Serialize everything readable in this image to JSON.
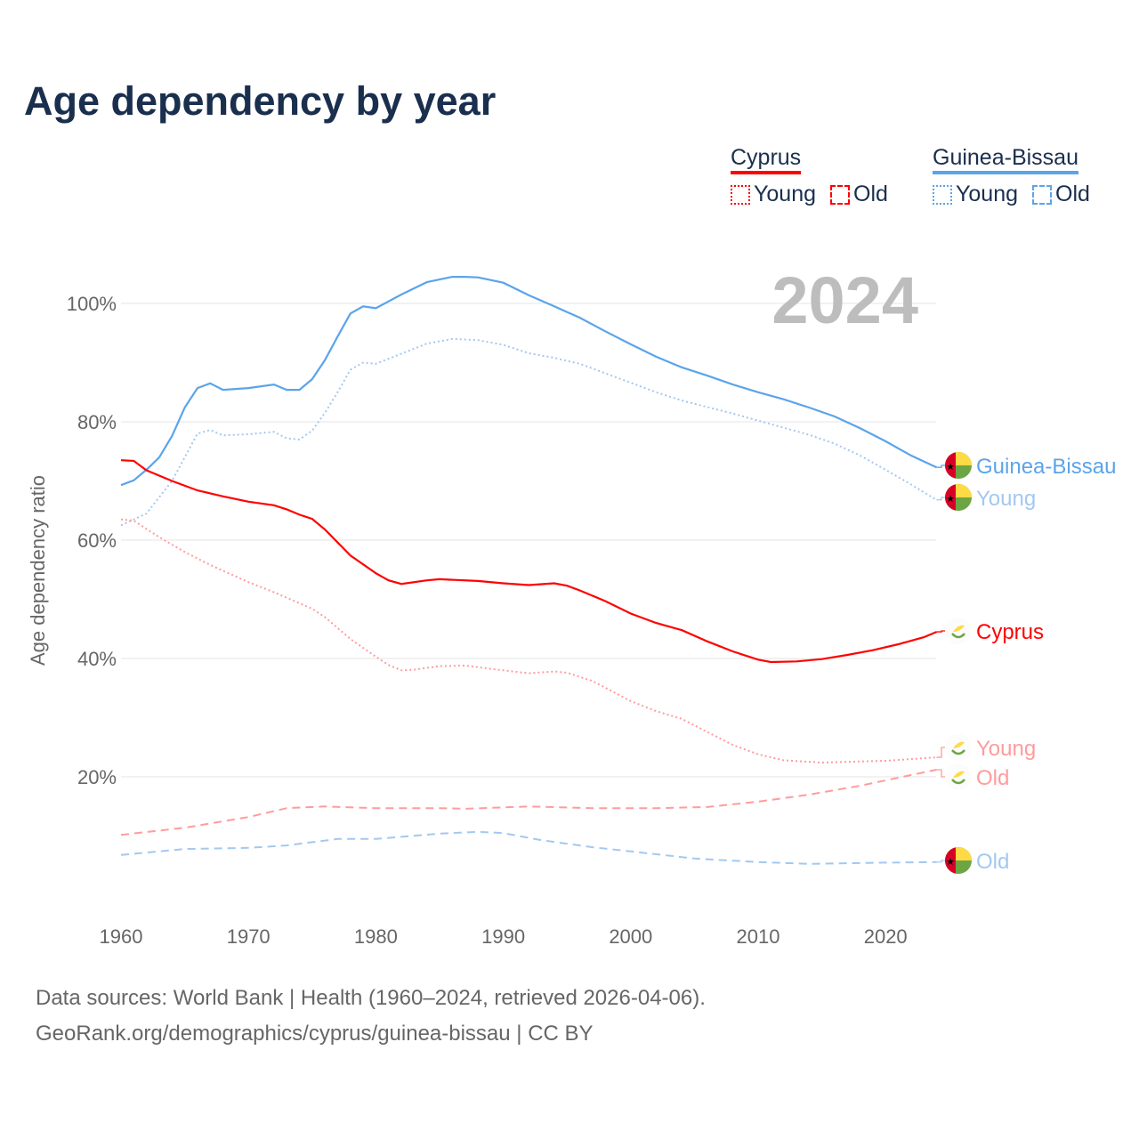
{
  "title": "Age dependency by year",
  "legend": {
    "groups": [
      {
        "name": "Cyprus",
        "color": "#ff0000",
        "young_label": "Young",
        "old_label": "Old"
      },
      {
        "name": "Guinea-Bissau",
        "color": "#5ba4ea",
        "young_label": "Young",
        "old_label": "Old"
      }
    ]
  },
  "footer": {
    "line1": "Data sources: World Bank | Health (1960–2024, retrieved 2026-04-06).",
    "line2": "GeoRank.org/demographics/cyprus/guinea-bissau | CC BY"
  },
  "chart_data": {
    "type": "line",
    "title": "Age dependency by year",
    "year_label": "2024",
    "xlabel": "",
    "ylabel": "Age dependency ratio",
    "xlim": [
      1960,
      2024
    ],
    "ylim": [
      0,
      107
    ],
    "x_ticks": [
      1960,
      1970,
      1980,
      1990,
      2000,
      2010,
      2020
    ],
    "y_ticks": [
      20,
      40,
      60,
      80,
      100
    ],
    "y_tick_labels": [
      "20%",
      "40%",
      "60%",
      "80%",
      "100%"
    ],
    "grid": true,
    "legend_position": "top-right",
    "series": [
      {
        "name": "Guinea-Bissau",
        "label": "Guinea-Bissau",
        "country": "guinea-bissau",
        "style": "solid",
        "color": "#5ba4ea",
        "x": [
          1960,
          1961,
          1962,
          1963,
          1964,
          1965,
          1966,
          1967,
          1968,
          1970,
          1972,
          1973,
          1974,
          1975,
          1976,
          1977,
          1978,
          1979,
          1980,
          1982,
          1984,
          1986,
          1987,
          1988,
          1990,
          1992,
          1994,
          1996,
          1998,
          2000,
          2002,
          2004,
          2006,
          2008,
          2010,
          2012,
          2014,
          2016,
          2018,
          2020,
          2022,
          2024
        ],
        "y": [
          69.3,
          70.1,
          71.9,
          74.0,
          77.6,
          82.4,
          85.7,
          86.5,
          85.4,
          85.7,
          86.3,
          85.4,
          85.4,
          87.2,
          90.4,
          94.4,
          98.3,
          99.5,
          99.2,
          101.5,
          103.6,
          104.5,
          104.5,
          104.4,
          103.5,
          101.4,
          99.5,
          97.6,
          95.3,
          93.1,
          91.0,
          89.2,
          87.8,
          86.3,
          85.0,
          83.8,
          82.4,
          80.9,
          78.9,
          76.7,
          74.3,
          72.3
        ]
      },
      {
        "name": "Guinea-Bissau Young",
        "label": "Young",
        "country": "guinea-bissau",
        "style": "dotted",
        "color": "#a3c8f0",
        "x": [
          1960,
          1962,
          1964,
          1966,
          1967,
          1968,
          1970,
          1972,
          1973,
          1974,
          1975,
          1976,
          1977,
          1978,
          1979,
          1980,
          1982,
          1984,
          1986,
          1988,
          1990,
          1992,
          1994,
          1996,
          1998,
          2000,
          2002,
          2004,
          2006,
          2008,
          2010,
          2012,
          2014,
          2016,
          2018,
          2020,
          2022,
          2024
        ],
        "y": [
          62.5,
          64.5,
          70.0,
          78.0,
          78.6,
          77.7,
          77.9,
          78.3,
          77.2,
          77.0,
          78.5,
          81.5,
          85.0,
          88.8,
          90.0,
          89.8,
          91.5,
          93.2,
          94.0,
          93.8,
          93.0,
          91.6,
          90.8,
          89.8,
          88.2,
          86.6,
          85.0,
          83.6,
          82.5,
          81.4,
          80.2,
          79.0,
          77.8,
          76.3,
          74.3,
          71.9,
          69.4,
          66.8
        ]
      },
      {
        "name": "Cyprus",
        "label": "Cyprus",
        "country": "cyprus",
        "style": "solid",
        "color": "#ff0000",
        "x": [
          1960,
          1961,
          1962,
          1964,
          1966,
          1968,
          1970,
          1972,
          1973,
          1974,
          1975,
          1976,
          1978,
          1980,
          1981,
          1982,
          1984,
          1985,
          1988,
          1990,
          1992,
          1994,
          1995,
          1996,
          1998,
          2000,
          2002,
          2004,
          2006,
          2008,
          2009,
          2010,
          2011,
          2013,
          2015,
          2017,
          2019,
          2021,
          2023,
          2024
        ],
        "y": [
          73.5,
          73.4,
          71.8,
          70.0,
          68.4,
          67.4,
          66.5,
          65.9,
          65.2,
          64.3,
          63.6,
          61.8,
          57.4,
          54.4,
          53.2,
          52.6,
          53.2,
          53.4,
          53.1,
          52.7,
          52.4,
          52.7,
          52.3,
          51.5,
          49.7,
          47.6,
          46.0,
          44.8,
          42.9,
          41.2,
          40.5,
          39.8,
          39.4,
          39.5,
          39.9,
          40.6,
          41.4,
          42.4,
          43.6,
          44.5
        ]
      },
      {
        "name": "Cyprus Young",
        "label": "Young",
        "country": "cyprus",
        "style": "dotted",
        "color": "#ff9c9c",
        "x": [
          1960,
          1961,
          1963,
          1965,
          1967,
          1970,
          1972,
          1975,
          1976,
          1978,
          1980,
          1981,
          1982,
          1983,
          1985,
          1987,
          1990,
          1992,
          1994,
          1995,
          1997,
          2000,
          2002,
          2004,
          2006,
          2008,
          2010,
          2012,
          2015,
          2018,
          2020,
          2024
        ],
        "y": [
          63.5,
          63.3,
          60.5,
          58.0,
          55.8,
          52.9,
          51.2,
          48.4,
          47.0,
          43.3,
          40.3,
          38.9,
          38.0,
          38.1,
          38.7,
          38.8,
          38.0,
          37.5,
          37.8,
          37.6,
          36.2,
          32.8,
          31.1,
          29.8,
          27.6,
          25.4,
          23.8,
          22.8,
          22.4,
          22.6,
          22.7,
          23.3
        ]
      },
      {
        "name": "Cyprus Old",
        "label": "Old",
        "country": "cyprus",
        "style": "dashed",
        "color": "#ff9c9c",
        "x": [
          1960,
          1965,
          1970,
          1973,
          1976,
          1980,
          1985,
          1987,
          1992,
          1997,
          2002,
          2006,
          2010,
          2014,
          2018,
          2022,
          2024
        ],
        "y": [
          10.2,
          11.4,
          13.2,
          14.7,
          15.0,
          14.7,
          14.7,
          14.6,
          15.0,
          14.7,
          14.7,
          14.9,
          15.8,
          17.0,
          18.5,
          20.3,
          21.2
        ]
      },
      {
        "name": "Guinea-Bissau Old",
        "label": "Old",
        "country": "guinea-bissau",
        "style": "dashed",
        "color": "#a3c8f0",
        "x": [
          1960,
          1965,
          1970,
          1973,
          1977,
          1980,
          1985,
          1988,
          1990,
          1993,
          1997,
          2000,
          2005,
          2010,
          2014,
          2020,
          2024
        ],
        "y": [
          6.8,
          7.8,
          8.0,
          8.4,
          9.5,
          9.5,
          10.4,
          10.7,
          10.5,
          9.3,
          8.1,
          7.4,
          6.2,
          5.6,
          5.3,
          5.5,
          5.6
        ]
      }
    ]
  }
}
